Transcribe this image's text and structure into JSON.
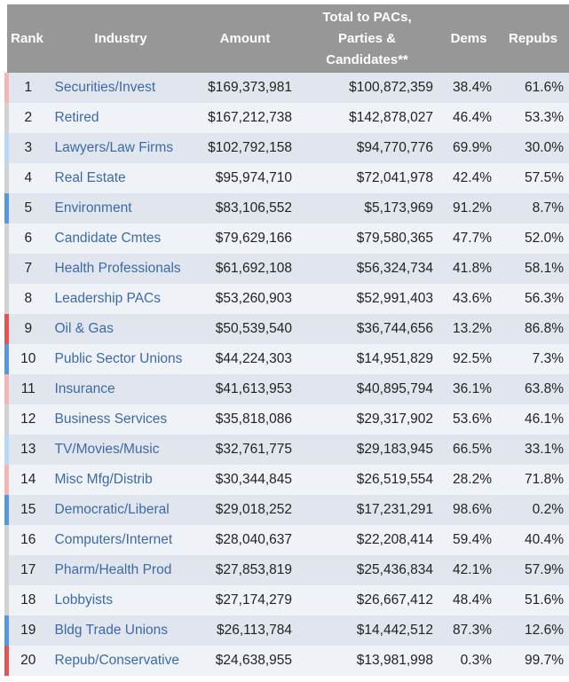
{
  "table": {
    "headers": {
      "rank": "Rank",
      "industry": "Industry",
      "amount": "Amount",
      "total_line1": "Total to PACs,",
      "total_line2": "Parties &",
      "total_line3": "Candidates**",
      "dems": "Dems",
      "repubs": "Repubs"
    },
    "lean_colors": {
      "strong_rep": "#e65353",
      "lean_rep": "#f7b6b6",
      "neutral": "#d2d2d2",
      "lean_dem": "#b8d9f7",
      "strong_dem": "#5597e0"
    },
    "rows": [
      {
        "rank": "1",
        "industry": "Securities/Invest",
        "amount": "$169,373,981",
        "total": "$100,872,359",
        "dems": "38.4%",
        "repubs": "61.6%",
        "lean": "lean_rep"
      },
      {
        "rank": "2",
        "industry": "Retired",
        "amount": "$167,212,738",
        "total": "$142,878,027",
        "dems": "46.4%",
        "repubs": "53.3%",
        "lean": "neutral"
      },
      {
        "rank": "3",
        "industry": "Lawyers/Law Firms",
        "amount": "$102,792,158",
        "total": "$94,770,776",
        "dems": "69.9%",
        "repubs": "30.0%",
        "lean": "lean_dem"
      },
      {
        "rank": "4",
        "industry": "Real Estate",
        "amount": "$95,974,710",
        "total": "$72,041,978",
        "dems": "42.4%",
        "repubs": "57.5%",
        "lean": "neutral"
      },
      {
        "rank": "5",
        "industry": "Environment",
        "amount": "$83,106,552",
        "total": "$5,173,969",
        "dems": "91.2%",
        "repubs": "8.7%",
        "lean": "strong_dem"
      },
      {
        "rank": "6",
        "industry": "Candidate Cmtes",
        "amount": "$79,629,166",
        "total": "$79,580,365",
        "dems": "47.7%",
        "repubs": "52.0%",
        "lean": "neutral"
      },
      {
        "rank": "7",
        "industry": "Health Professionals",
        "amount": "$61,692,108",
        "total": "$56,324,734",
        "dems": "41.8%",
        "repubs": "58.1%",
        "lean": "neutral"
      },
      {
        "rank": "8",
        "industry": "Leadership PACs",
        "amount": "$53,260,903",
        "total": "$52,991,403",
        "dems": "43.6%",
        "repubs": "56.3%",
        "lean": "neutral"
      },
      {
        "rank": "9",
        "industry": "Oil & Gas",
        "amount": "$50,539,540",
        "total": "$36,744,656",
        "dems": "13.2%",
        "repubs": "86.8%",
        "lean": "strong_rep"
      },
      {
        "rank": "10",
        "industry": "Public Sector Unions",
        "amount": "$44,224,303",
        "total": "$14,951,829",
        "dems": "92.5%",
        "repubs": "7.3%",
        "lean": "strong_dem"
      },
      {
        "rank": "11",
        "industry": "Insurance",
        "amount": "$41,613,953",
        "total": "$40,895,794",
        "dems": "36.1%",
        "repubs": "63.8%",
        "lean": "lean_rep"
      },
      {
        "rank": "12",
        "industry": "Business Services",
        "amount": "$35,818,086",
        "total": "$29,317,902",
        "dems": "53.6%",
        "repubs": "46.1%",
        "lean": "neutral"
      },
      {
        "rank": "13",
        "industry": "TV/Movies/Music",
        "amount": "$32,761,775",
        "total": "$29,183,945",
        "dems": "66.5%",
        "repubs": "33.1%",
        "lean": "lean_dem"
      },
      {
        "rank": "14",
        "industry": "Misc Mfg/Distrib",
        "amount": "$30,344,845",
        "total": "$26,519,554",
        "dems": "28.2%",
        "repubs": "71.8%",
        "lean": "lean_rep"
      },
      {
        "rank": "15",
        "industry": "Democratic/Liberal",
        "amount": "$29,018,252",
        "total": "$17,231,291",
        "dems": "98.6%",
        "repubs": "0.2%",
        "lean": "strong_dem"
      },
      {
        "rank": "16",
        "industry": "Computers/Internet",
        "amount": "$28,040,637",
        "total": "$22,208,414",
        "dems": "59.4%",
        "repubs": "40.4%",
        "lean": "neutral"
      },
      {
        "rank": "17",
        "industry": "Pharm/Health Prod",
        "amount": "$27,853,819",
        "total": "$25,436,834",
        "dems": "42.1%",
        "repubs": "57.9%",
        "lean": "neutral"
      },
      {
        "rank": "18",
        "industry": "Lobbyists",
        "amount": "$27,174,279",
        "total": "$26,667,412",
        "dems": "48.4%",
        "repubs": "51.6%",
        "lean": "neutral"
      },
      {
        "rank": "19",
        "industry": "Bldg Trade Unions",
        "amount": "$26,113,784",
        "total": "$14,442,512",
        "dems": "87.3%",
        "repubs": "12.6%",
        "lean": "strong_dem"
      },
      {
        "rank": "20",
        "industry": "Repub/Conservative",
        "amount": "$24,638,955",
        "total": "$13,981,998",
        "dems": "0.3%",
        "repubs": "99.7%",
        "lean": "strong_rep"
      }
    ]
  }
}
